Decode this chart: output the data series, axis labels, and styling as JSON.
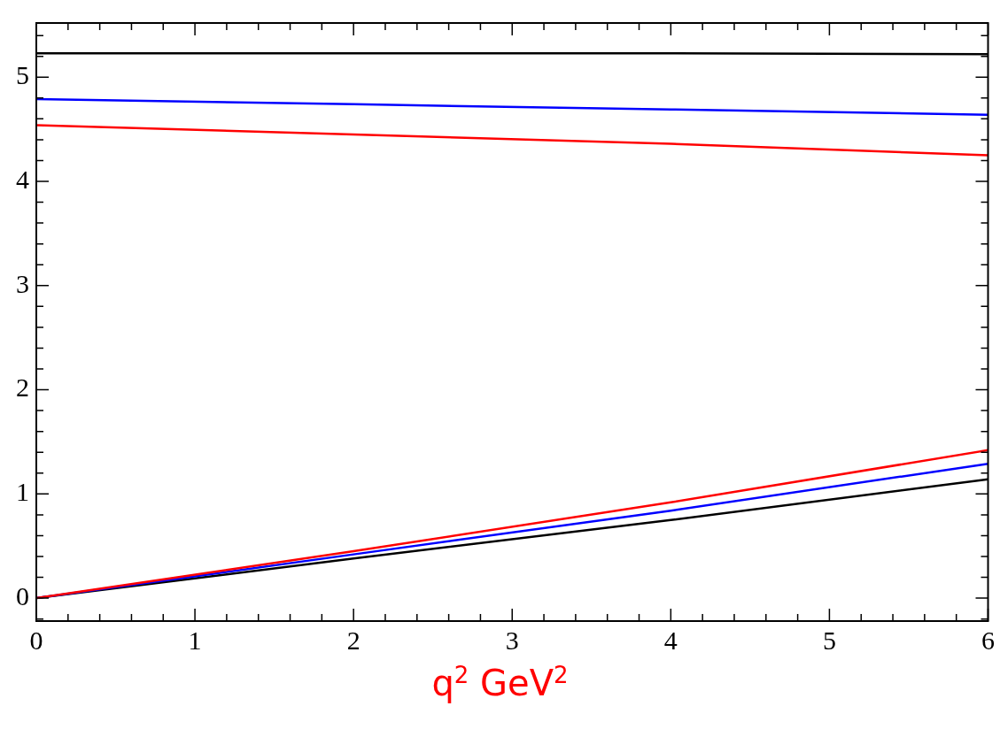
{
  "chart_data": {
    "type": "line",
    "xlabel": "q$^{2}$  GeV$^{2}$",
    "x": [
      0,
      2,
      4,
      6
    ],
    "series": [
      {
        "color": "#000000",
        "values": [
          5.23,
          5.23,
          5.23,
          5.22
        ]
      },
      {
        "color": "#0000ff",
        "values": [
          4.79,
          4.74,
          4.69,
          4.64
        ]
      },
      {
        "color": "#ff0000",
        "values": [
          4.54,
          4.45,
          4.36,
          4.25
        ]
      },
      {
        "color": "#ff0000",
        "values": [
          0,
          0.45,
          0.92,
          1.42
        ]
      },
      {
        "color": "#0000ff",
        "values": [
          0,
          0.42,
          0.84,
          1.29
        ]
      },
      {
        "color": "#000000",
        "values": [
          0,
          0.38,
          0.75,
          1.14
        ]
      }
    ],
    "xlim": [
      0,
      6
    ],
    "ylim": [
      -0.22,
      5.52
    ],
    "xticks": [
      0,
      {
        "value": 0.2,
        "label": null
      },
      {
        "value": 0.4,
        "label": null
      },
      {
        "value": 0.6,
        "label": null
      },
      {
        "value": 0.8,
        "label": null
      },
      1,
      {
        "value": 1.2,
        "label": null
      },
      {
        "value": 1.4,
        "label": null
      },
      {
        "value": 1.6,
        "label": null
      },
      {
        "value": 1.8,
        "label": null
      },
      2,
      {
        "value": 2.2,
        "label": null
      },
      {
        "value": 2.4,
        "label": null
      },
      {
        "value": 2.6,
        "label": null
      },
      {
        "value": 2.8,
        "label": null
      },
      3,
      {
        "value": 3.2,
        "label": null
      },
      {
        "value": 3.4,
        "label": null
      },
      {
        "value": 3.6,
        "label": null
      },
      {
        "value": 3.8,
        "label": null
      },
      4,
      {
        "value": 4.2,
        "label": null
      },
      {
        "value": 4.4,
        "label": null
      },
      {
        "value": 4.6,
        "label": null
      },
      {
        "value": 4.8,
        "label": null
      },
      5,
      {
        "value": 5.2,
        "label": null
      },
      {
        "value": 5.4,
        "label": null
      },
      {
        "value": 5.6,
        "label": null
      },
      {
        "value": 5.8,
        "label": null
      },
      6
    ],
    "yticks": [
      {
        "value": -0.2,
        "label": null
      },
      0,
      {
        "value": 0.2,
        "label": null
      },
      {
        "value": 0.4,
        "label": null
      },
      {
        "value": 0.6,
        "label": null
      },
      {
        "value": 0.8,
        "label": null
      },
      1,
      {
        "value": 1.2,
        "label": null
      },
      {
        "value": 1.4,
        "label": null
      },
      {
        "value": 1.6,
        "label": null
      },
      {
        "value": 1.8,
        "label": null
      },
      2,
      {
        "value": 2.2,
        "label": null
      },
      {
        "value": 2.4,
        "label": null
      },
      {
        "value": 2.6,
        "label": null
      },
      {
        "value": 2.8,
        "label": null
      },
      3,
      {
        "value": 3.2,
        "label": null
      },
      {
        "value": 3.4,
        "label": null
      },
      {
        "value": 3.6,
        "label": null
      },
      {
        "value": 3.8,
        "label": null
      },
      4,
      {
        "value": 4.2,
        "label": null
      },
      {
        "value": 4.4,
        "label": null
      },
      {
        "value": 4.6,
        "label": null
      },
      {
        "value": 4.8,
        "label": null
      },
      5,
      {
        "value": 5.2,
        "label": null
      },
      {
        "value": 5.4,
        "label": null
      }
    ],
    "grid": false,
    "marker": "none",
    "line_style": "solid"
  }
}
